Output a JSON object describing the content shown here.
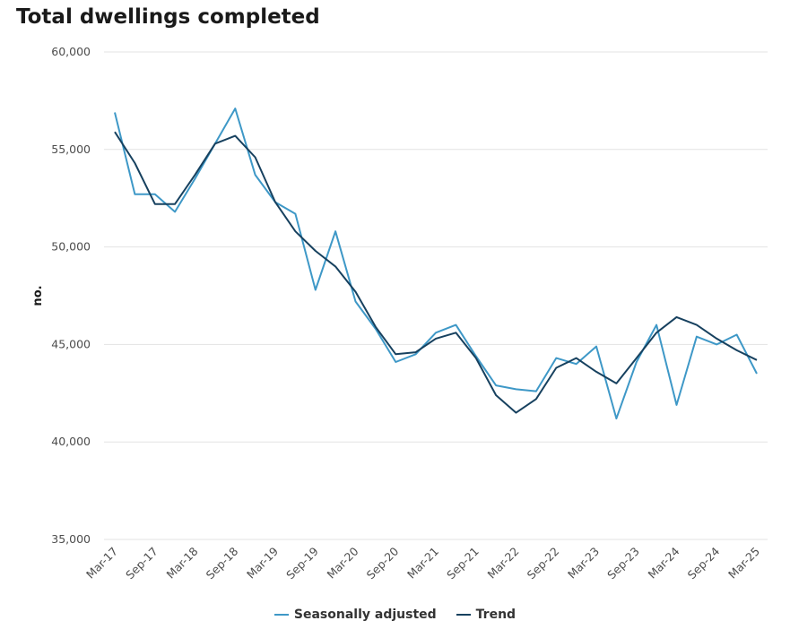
{
  "chart_data": {
    "type": "line",
    "title": "Total dwellings completed",
    "ylabel": "no.",
    "xlabel": "",
    "ylim": [
      35000,
      60000
    ],
    "yticks": [
      35000,
      40000,
      45000,
      50000,
      55000,
      60000
    ],
    "ytick_labels": [
      "35,000",
      "40,000",
      "45,000",
      "50,000",
      "55,000",
      "60,000"
    ],
    "x": [
      "Mar-17",
      "Jun-17",
      "Sep-17",
      "Dec-17",
      "Mar-18",
      "Jun-18",
      "Sep-18",
      "Dec-18",
      "Mar-19",
      "Jun-19",
      "Sep-19",
      "Dec-19",
      "Mar-20",
      "Jun-20",
      "Sep-20",
      "Dec-20",
      "Mar-21",
      "Jun-21",
      "Sep-21",
      "Dec-21",
      "Mar-22",
      "Jun-22",
      "Sep-22",
      "Dec-22",
      "Mar-23",
      "Jun-23",
      "Sep-23",
      "Dec-23",
      "Mar-24",
      "Jun-24",
      "Sep-24",
      "Dec-24",
      "Mar-25"
    ],
    "xtick_labels": [
      "Mar-17",
      "Sep-17",
      "Mar-18",
      "Sep-18",
      "Mar-19",
      "Sep-19",
      "Mar-20",
      "Sep-20",
      "Mar-21",
      "Sep-21",
      "Mar-22",
      "Sep-22",
      "Mar-23",
      "Sep-23",
      "Mar-24",
      "Sep-24",
      "Mar-25"
    ],
    "grid": true,
    "legend_position": "bottom",
    "series": [
      {
        "name": "Seasonally adjusted",
        "color": "#3e98c7",
        "values": [
          56900,
          52700,
          52700,
          51800,
          53500,
          55300,
          57100,
          53700,
          52300,
          51700,
          47800,
          50800,
          47200,
          45800,
          44100,
          44500,
          45600,
          46000,
          44400,
          42900,
          42700,
          42600,
          44300,
          44000,
          44900,
          41200,
          44100,
          46000,
          41900,
          45400,
          45000,
          45500,
          43500
        ]
      },
      {
        "name": "Trend",
        "color": "#17415f",
        "values": [
          55900,
          54300,
          52200,
          52200,
          53700,
          55300,
          55700,
          54600,
          52300,
          50800,
          49800,
          49000,
          47700,
          45900,
          44500,
          44600,
          45300,
          45600,
          44300,
          42400,
          41500,
          42200,
          43800,
          44300,
          43600,
          43000,
          44300,
          45600,
          46400,
          46000,
          45300,
          44700,
          44200
        ]
      }
    ]
  }
}
